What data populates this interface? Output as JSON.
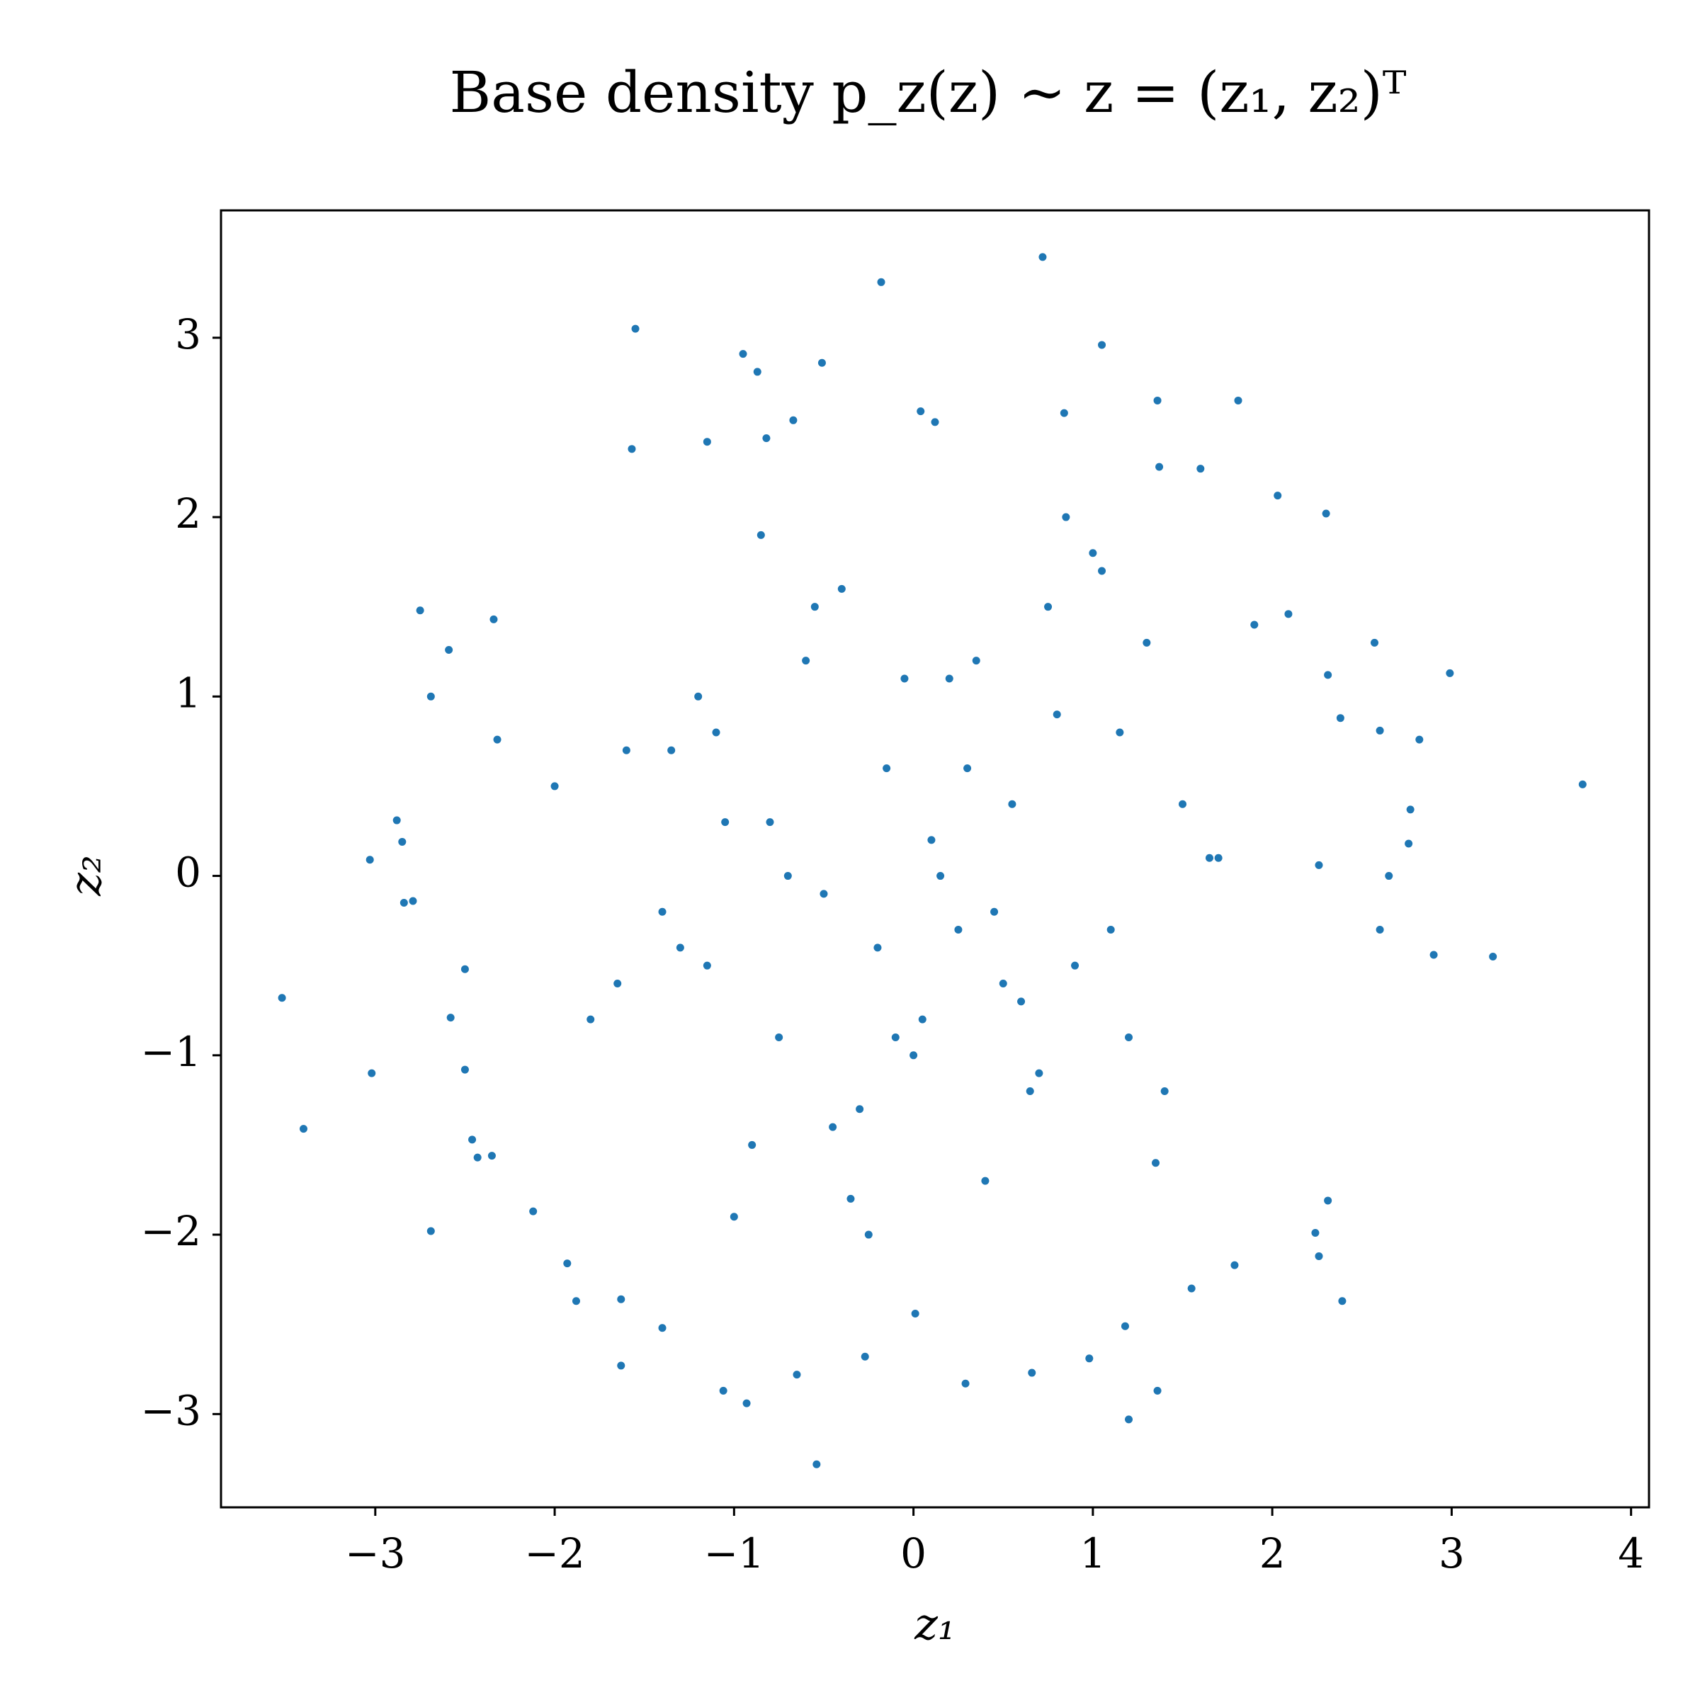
{
  "chart_data": {
    "type": "scatter",
    "title": "Base density p_z(z) ∼ z = (z₁, z₂)ᵀ",
    "x_label": "z₁",
    "y_label": "z₂",
    "xlim": [
      -3.86,
      4.1
    ],
    "ylim": [
      -3.52,
      3.71
    ],
    "xticks": [
      {
        "value": -3,
        "label": "−3"
      },
      {
        "value": -2,
        "label": "−2"
      },
      {
        "value": -1,
        "label": "−1"
      },
      0,
      1,
      2,
      3,
      4
    ],
    "yticks": [
      {
        "value": -3,
        "label": "−3"
      },
      {
        "value": -2,
        "label": "−2"
      },
      {
        "value": -1,
        "label": "−1"
      },
      0,
      1,
      2,
      3
    ],
    "series": [
      {
        "color": "#1f77b4",
        "x": [
          3.73,
          3.23,
          2.99,
          2.9,
          2.82,
          2.77,
          2.76,
          2.65,
          2.6,
          2.6,
          2.57,
          2.3,
          2.03,
          1.81,
          1.36,
          1.05,
          0.72,
          -0.18,
          -1.55,
          -0.51,
          -0.95,
          -0.87,
          0.04,
          0.12,
          0.84,
          -1.57,
          -3.52,
          -3.4,
          -3.03,
          -3.02,
          -2.88,
          -2.85,
          -2.84,
          -2.79,
          -2.75,
          -2.69,
          -2.69,
          -2.59,
          -2.58,
          -2.5,
          -2.5,
          -2.46,
          -2.43,
          -2.35,
          -2.34,
          -2.32,
          -2.12,
          -1.93,
          -1.88,
          -1.63,
          -1.63,
          -1.4,
          -1.06,
          -0.93,
          -0.54,
          -0.65,
          -0.27,
          0.29,
          0.66,
          1.2,
          1.36,
          1.18,
          2.39,
          2.26,
          2.24,
          2.31,
          1.79,
          1.55,
          0.98,
          0.01,
          2.26,
          2.38,
          2.31,
          2.09,
          1.6,
          1.37,
          -1.15,
          -0.82,
          -0.67,
          0.1,
          -0.2,
          0.3,
          -0.5,
          0.6,
          -0.8,
          0.9,
          -1.1,
          1.2,
          -1.4,
          1.5,
          0.0,
          0.2,
          -0.3,
          0.5,
          -0.6,
          0.8,
          -0.9,
          1.1,
          -1.2,
          1.4,
          -1.6,
          1.7,
          -1.8,
          1.9,
          -2.0,
          0.4,
          -0.4,
          0.7,
          -0.7,
          1.0,
          -1.0,
          1.3,
          -1.3,
          0.15,
          -0.15,
          0.45,
          -0.45,
          0.75,
          -0.75,
          1.05,
          -1.05,
          1.35,
          -1.35,
          1.65,
          -1.65,
          -0.1,
          0.35,
          -0.55,
          0.65,
          -0.25,
          0.55,
          -0.85,
          0.85,
          1.15,
          -1.15,
          0.25,
          -0.35,
          0.05,
          -0.05
        ],
        "values": [
          0.51,
          -0.45,
          1.13,
          -0.44,
          0.76,
          0.37,
          0.18,
          0.0,
          0.81,
          -0.3,
          1.3,
          2.02,
          2.12,
          2.65,
          2.65,
          2.96,
          3.45,
          3.31,
          3.05,
          2.86,
          2.91,
          2.81,
          2.59,
          2.53,
          2.58,
          2.38,
          -0.68,
          -1.41,
          0.09,
          -1.1,
          0.31,
          0.19,
          -0.15,
          -0.14,
          1.48,
          1.0,
          -1.98,
          1.26,
          -0.79,
          -0.52,
          -1.08,
          -1.47,
          -1.57,
          -1.56,
          1.43,
          0.76,
          -1.87,
          -2.16,
          -2.37,
          -2.36,
          -2.73,
          -2.52,
          -2.87,
          -2.94,
          -3.28,
          -2.78,
          -2.68,
          -2.83,
          -2.77,
          -3.03,
          -2.87,
          -2.51,
          -2.37,
          -2.12,
          -1.99,
          -1.81,
          -2.17,
          -2.3,
          -2.69,
          -2.44,
          0.06,
          0.88,
          1.12,
          1.46,
          2.27,
          2.28,
          2.42,
          2.44,
          2.54,
          0.2,
          -0.4,
          0.6,
          -0.1,
          -0.7,
          0.3,
          -0.5,
          0.8,
          -0.9,
          -0.2,
          0.4,
          -1.0,
          1.1,
          -1.3,
          -0.6,
          1.2,
          0.9,
          -1.5,
          -0.3,
          1.0,
          -1.2,
          0.7,
          0.1,
          -0.8,
          1.4,
          0.5,
          -1.7,
          1.6,
          -1.1,
          0.0,
          1.8,
          -1.9,
          1.3,
          -0.4,
          0.0,
          0.6,
          -0.2,
          -1.4,
          1.5,
          -0.9,
          1.7,
          0.3,
          -1.6,
          0.7,
          0.1,
          -0.6,
          -0.9,
          1.2,
          1.5,
          -1.2,
          -2.0,
          0.4,
          1.9,
          2.0,
          0.8,
          -0.5,
          -0.3,
          -1.8,
          -0.8,
          1.1
        ]
      }
    ],
    "grid": false
  }
}
